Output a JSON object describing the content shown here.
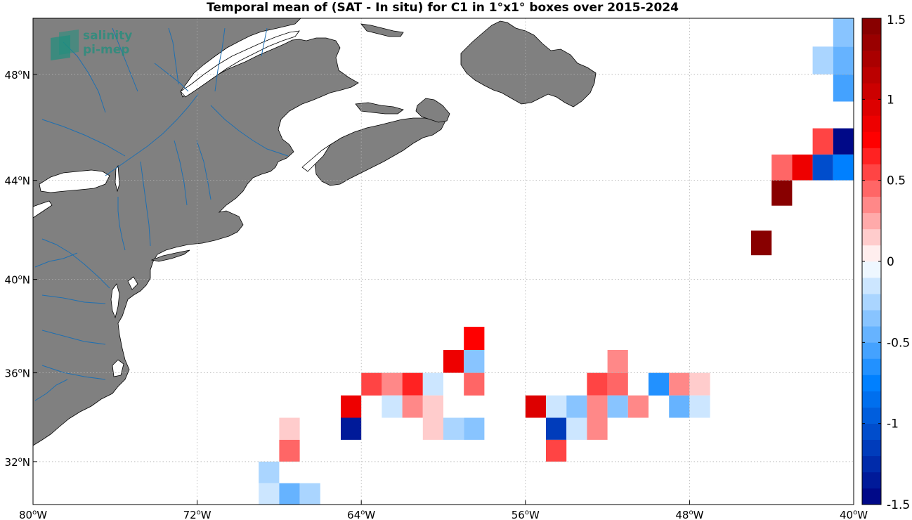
{
  "title": "Temporal mean of (SAT - In situ) for C1 in 1°x1° boxes over 2015-2024",
  "logo": {
    "line1": "salinity",
    "line2": "pi-mep"
  },
  "map": {
    "lon_range": [
      -80,
      -40
    ],
    "lat_range": [
      30,
      50
    ],
    "land_color": "#808080",
    "river_color": "#1f6fb0",
    "grid": true
  },
  "x_ticks": [
    {
      "lon": -80,
      "label": "80",
      "hemi": "W"
    },
    {
      "lon": -72,
      "label": "72",
      "hemi": "W"
    },
    {
      "lon": -64,
      "label": "64",
      "hemi": "W"
    },
    {
      "lon": -56,
      "label": "56",
      "hemi": "W"
    },
    {
      "lon": -48,
      "label": "48",
      "hemi": "W"
    },
    {
      "lon": -40,
      "label": "40",
      "hemi": "W"
    }
  ],
  "y_ticks": [
    {
      "lat": 48,
      "label": "48",
      "hemi": "N"
    },
    {
      "lat": 44,
      "label": "44",
      "hemi": "N"
    },
    {
      "lat": 40,
      "label": "40",
      "hemi": "N"
    },
    {
      "lat": 36,
      "label": "36",
      "hemi": "N"
    },
    {
      "lat": 32,
      "label": "32",
      "hemi": "N"
    }
  ],
  "colorbar": {
    "min": -1.5,
    "max": 1.5,
    "levels": 30,
    "ticks": [
      {
        "value": 1.5,
        "label": "1.5"
      },
      {
        "value": 1,
        "label": "1"
      },
      {
        "value": 0.5,
        "label": "0.5"
      },
      {
        "value": 0,
        "label": "0"
      },
      {
        "value": -0.5,
        "label": "-0.5"
      },
      {
        "value": -1,
        "label": "-1"
      },
      {
        "value": -1.5,
        "label": "-1.5"
      }
    ]
  },
  "chart_data": {
    "type": "heatmap",
    "title": "Temporal mean of (SAT - In situ) for C1 in 1°x1° boxes over 2015-2024",
    "x_unit": "longitude (deg)",
    "y_unit": "latitude (deg)",
    "xlim": [
      -80,
      -40
    ],
    "ylim": [
      30,
      50
    ],
    "clim": [
      -1.5,
      1.5
    ],
    "cells": [
      {
        "lon": -41,
        "lat": 49,
        "value": -0.35
      },
      {
        "lon": -42,
        "lat": 48,
        "value": -0.25
      },
      {
        "lon": -41,
        "lat": 48,
        "value": -0.5
      },
      {
        "lon": -41,
        "lat": 47,
        "value": -0.6
      },
      {
        "lon": -42,
        "lat": 45,
        "value": 0.55
      },
      {
        "lon": -41,
        "lat": 45,
        "value": -1.45
      },
      {
        "lon": -44,
        "lat": 44,
        "value": 0.45
      },
      {
        "lon": -43,
        "lat": 44,
        "value": 0.8
      },
      {
        "lon": -42,
        "lat": 44,
        "value": -1.05
      },
      {
        "lon": -41,
        "lat": 44,
        "value": -0.75
      },
      {
        "lon": -44,
        "lat": 43,
        "value": 1.45
      },
      {
        "lon": -45,
        "lat": 41,
        "value": 1.45
      },
      {
        "lon": -59,
        "lat": 37,
        "value": 0.7
      },
      {
        "lon": -60,
        "lat": 36,
        "value": 0.85
      },
      {
        "lon": -59,
        "lat": 36,
        "value": -0.35
      },
      {
        "lon": -64,
        "lat": 35,
        "value": 0.55
      },
      {
        "lon": -63,
        "lat": 35,
        "value": 0.3
      },
      {
        "lon": -62,
        "lat": 35,
        "value": 0.65
      },
      {
        "lon": -61,
        "lat": 35,
        "value": -0.1
      },
      {
        "lon": -59,
        "lat": 35,
        "value": 0.4
      },
      {
        "lon": -53,
        "lat": 35,
        "value": 0.55
      },
      {
        "lon": -52,
        "lat": 35,
        "value": 0.45
      },
      {
        "lon": -52,
        "lat": 36,
        "value": 0.3
      },
      {
        "lon": -50,
        "lat": 35,
        "value": -0.65
      },
      {
        "lon": -49,
        "lat": 35,
        "value": 0.3
      },
      {
        "lon": -48,
        "lat": 35,
        "value": 0.15
      },
      {
        "lon": -65,
        "lat": 34,
        "value": 0.8
      },
      {
        "lon": -63,
        "lat": 34,
        "value": -0.2
      },
      {
        "lon": -62,
        "lat": 34,
        "value": 0.3
      },
      {
        "lon": -61,
        "lat": 34,
        "value": 0.15
      },
      {
        "lon": -56,
        "lat": 34,
        "value": 0.95
      },
      {
        "lon": -55,
        "lat": 34,
        "value": -0.2
      },
      {
        "lon": -54,
        "lat": 34,
        "value": -0.4
      },
      {
        "lon": -53,
        "lat": 34,
        "value": 0.3
      },
      {
        "lon": -52,
        "lat": 34,
        "value": -0.35
      },
      {
        "lon": -51,
        "lat": 34,
        "value": 0.3
      },
      {
        "lon": -49,
        "lat": 34,
        "value": -0.45
      },
      {
        "lon": -48,
        "lat": 34,
        "value": -0.2
      },
      {
        "lon": -65,
        "lat": 33,
        "value": -1.3
      },
      {
        "lon": -61,
        "lat": 33,
        "value": 0.15
      },
      {
        "lon": -60,
        "lat": 33,
        "value": -0.25
      },
      {
        "lon": -59,
        "lat": 33,
        "value": -0.4
      },
      {
        "lon": -55,
        "lat": 33,
        "value": -1.2
      },
      {
        "lon": -54,
        "lat": 33,
        "value": -0.1
      },
      {
        "lon": -53,
        "lat": 33,
        "value": 0.3
      },
      {
        "lon": -68,
        "lat": 33,
        "value": 0.15
      },
      {
        "lon": -68,
        "lat": 32,
        "value": 0.45
      },
      {
        "lon": -55,
        "lat": 32,
        "value": 0.5
      },
      {
        "lon": -69,
        "lat": 31,
        "value": -0.25
      },
      {
        "lon": -69,
        "lat": 30,
        "value": -0.15
      },
      {
        "lon": -68,
        "lat": 30,
        "value": -0.45
      },
      {
        "lon": -67,
        "lat": 30,
        "value": -0.25
      }
    ]
  }
}
